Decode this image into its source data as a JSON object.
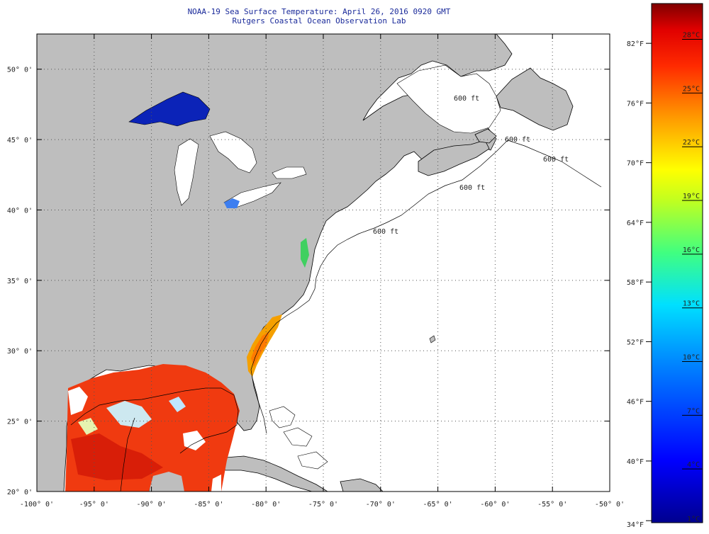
{
  "header": {
    "title": "NOAA-19 Sea Surface Temperature:  April 26, 2016 0920 GMT",
    "subtitle": "Rutgers Coastal Ocean Observation Lab"
  },
  "map": {
    "lon_range": [
      -100,
      -50
    ],
    "lat_range": [
      20,
      52.5
    ],
    "lon_ticks": [
      "-100° 0'",
      "-95° 0'",
      "-90° 0'",
      "-85° 0'",
      "-80° 0'",
      "-75° 0'",
      "-70° 0'",
      "-65° 0'",
      "-60° 0'",
      "-55° 0'",
      "-50° 0'"
    ],
    "lat_ticks": [
      "20° 0'",
      "25° 0'",
      "30° 0'",
      "35° 0'",
      "40° 0'",
      "45° 0'",
      "50° 0'"
    ],
    "lat_values": [
      20,
      25,
      30,
      35,
      40,
      45,
      50
    ],
    "lon_values": [
      -100,
      -95,
      -90,
      -85,
      -80,
      -75,
      -70,
      -65,
      -60,
      -55,
      -50
    ],
    "contour_labels": [
      "600 ft",
      "600 ft",
      "600 ft",
      "600 ft",
      "600 ft"
    ],
    "colors": {
      "land": "#bebebe",
      "ocean_nodata": "#ffffff",
      "gulf_warm": "#f03a10",
      "lake_superior": "#0b23b8"
    }
  },
  "colorbar": {
    "fahrenheit_labels": [
      "82°F",
      "76°F",
      "70°F",
      "64°F",
      "58°F",
      "52°F",
      "46°F",
      "40°F",
      "34°F"
    ],
    "fahrenheit_values": [
      82,
      76,
      70,
      64,
      58,
      52,
      46,
      40,
      34
    ],
    "celsius_labels": [
      "28°C",
      "25°C",
      "22°C",
      "19°C",
      "16°C",
      "13°C",
      "10°C",
      "7°C",
      "4°C",
      "1°C"
    ],
    "celsius_values": [
      28,
      25,
      22,
      19,
      16,
      13,
      10,
      7,
      4,
      1
    ],
    "min_c": 1,
    "max_c": 30
  }
}
